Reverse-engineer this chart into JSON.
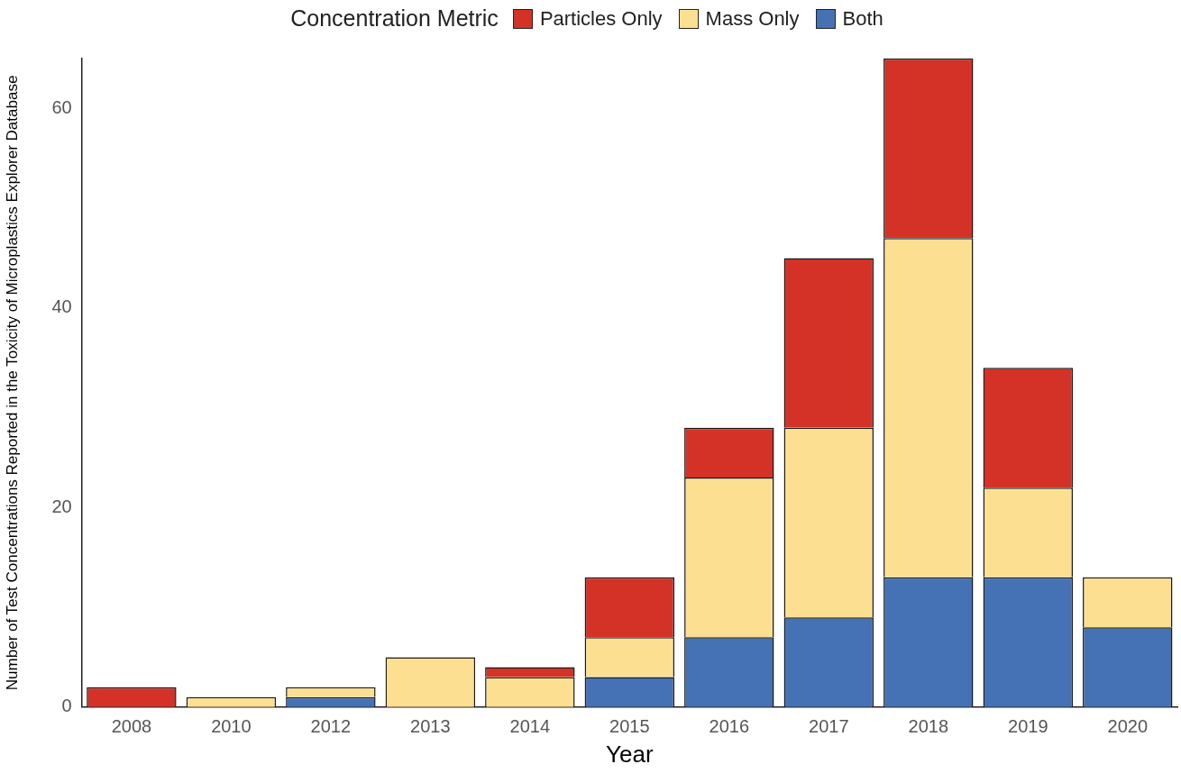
{
  "chart_data": {
    "type": "bar",
    "stacked": true,
    "xlabel": "Year",
    "ylabel": "Number of Test Concentrations Reported in the Toxicity of Microplastics Explorer Database",
    "legend_title": "Concentration Metric",
    "legend": "top",
    "categories": [
      "2008",
      "2010",
      "2012",
      "2013",
      "2014",
      "2015",
      "2016",
      "2017",
      "2018",
      "2019",
      "2020"
    ],
    "series": [
      {
        "name": "Both",
        "color": "#4472b4",
        "values": [
          0,
          0,
          1,
          0,
          0,
          3,
          7,
          9,
          13,
          13,
          8
        ]
      },
      {
        "name": "Mass Only",
        "color": "#fddf92",
        "values": [
          0,
          1,
          1,
          5,
          3,
          4,
          16,
          19,
          34,
          9,
          5
        ]
      },
      {
        "name": "Particles Only",
        "color": "#d43127",
        "values": [
          2,
          0,
          0,
          0,
          1,
          6,
          5,
          17,
          18,
          12,
          0
        ]
      }
    ],
    "ylim": [
      0,
      65
    ],
    "yticks": [
      0,
      20,
      40,
      60
    ],
    "grid": false
  }
}
